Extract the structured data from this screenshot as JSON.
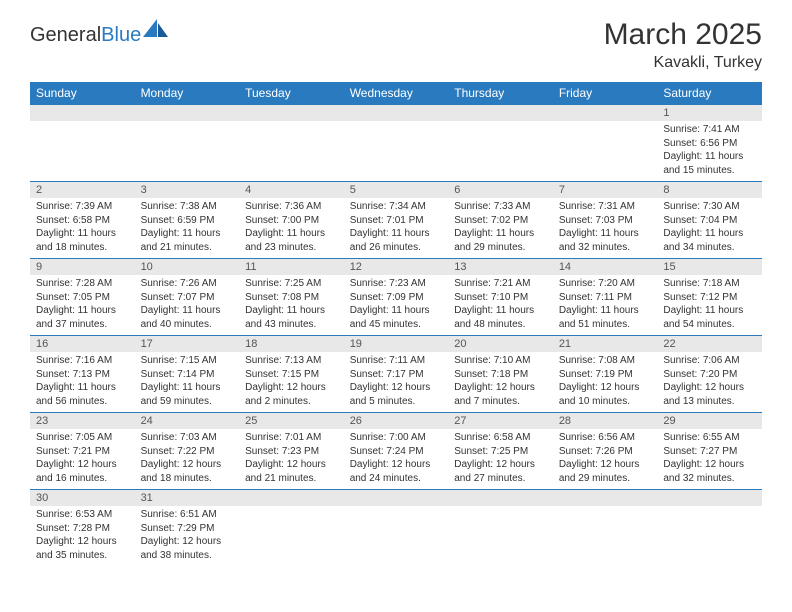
{
  "header": {
    "logo_general": "General",
    "logo_blue": "Blue",
    "month_title": "March 2025",
    "location": "Kavakli, Turkey"
  },
  "colors": {
    "header_bg": "#2a7abf",
    "header_text": "#ffffff",
    "daynum_bg": "#e8e8e8",
    "border": "#2a7abf",
    "text": "#333333",
    "logo_blue": "#2a7abf"
  },
  "weekdays": [
    "Sunday",
    "Monday",
    "Tuesday",
    "Wednesday",
    "Thursday",
    "Friday",
    "Saturday"
  ],
  "weeks": [
    [
      null,
      null,
      null,
      null,
      null,
      null,
      {
        "day": "1",
        "sunrise": "Sunrise: 7:41 AM",
        "sunset": "Sunset: 6:56 PM",
        "daylight": "Daylight: 11 hours and 15 minutes."
      }
    ],
    [
      {
        "day": "2",
        "sunrise": "Sunrise: 7:39 AM",
        "sunset": "Sunset: 6:58 PM",
        "daylight": "Daylight: 11 hours and 18 minutes."
      },
      {
        "day": "3",
        "sunrise": "Sunrise: 7:38 AM",
        "sunset": "Sunset: 6:59 PM",
        "daylight": "Daylight: 11 hours and 21 minutes."
      },
      {
        "day": "4",
        "sunrise": "Sunrise: 7:36 AM",
        "sunset": "Sunset: 7:00 PM",
        "daylight": "Daylight: 11 hours and 23 minutes."
      },
      {
        "day": "5",
        "sunrise": "Sunrise: 7:34 AM",
        "sunset": "Sunset: 7:01 PM",
        "daylight": "Daylight: 11 hours and 26 minutes."
      },
      {
        "day": "6",
        "sunrise": "Sunrise: 7:33 AM",
        "sunset": "Sunset: 7:02 PM",
        "daylight": "Daylight: 11 hours and 29 minutes."
      },
      {
        "day": "7",
        "sunrise": "Sunrise: 7:31 AM",
        "sunset": "Sunset: 7:03 PM",
        "daylight": "Daylight: 11 hours and 32 minutes."
      },
      {
        "day": "8",
        "sunrise": "Sunrise: 7:30 AM",
        "sunset": "Sunset: 7:04 PM",
        "daylight": "Daylight: 11 hours and 34 minutes."
      }
    ],
    [
      {
        "day": "9",
        "sunrise": "Sunrise: 7:28 AM",
        "sunset": "Sunset: 7:05 PM",
        "daylight": "Daylight: 11 hours and 37 minutes."
      },
      {
        "day": "10",
        "sunrise": "Sunrise: 7:26 AM",
        "sunset": "Sunset: 7:07 PM",
        "daylight": "Daylight: 11 hours and 40 minutes."
      },
      {
        "day": "11",
        "sunrise": "Sunrise: 7:25 AM",
        "sunset": "Sunset: 7:08 PM",
        "daylight": "Daylight: 11 hours and 43 minutes."
      },
      {
        "day": "12",
        "sunrise": "Sunrise: 7:23 AM",
        "sunset": "Sunset: 7:09 PM",
        "daylight": "Daylight: 11 hours and 45 minutes."
      },
      {
        "day": "13",
        "sunrise": "Sunrise: 7:21 AM",
        "sunset": "Sunset: 7:10 PM",
        "daylight": "Daylight: 11 hours and 48 minutes."
      },
      {
        "day": "14",
        "sunrise": "Sunrise: 7:20 AM",
        "sunset": "Sunset: 7:11 PM",
        "daylight": "Daylight: 11 hours and 51 minutes."
      },
      {
        "day": "15",
        "sunrise": "Sunrise: 7:18 AM",
        "sunset": "Sunset: 7:12 PM",
        "daylight": "Daylight: 11 hours and 54 minutes."
      }
    ],
    [
      {
        "day": "16",
        "sunrise": "Sunrise: 7:16 AM",
        "sunset": "Sunset: 7:13 PM",
        "daylight": "Daylight: 11 hours and 56 minutes."
      },
      {
        "day": "17",
        "sunrise": "Sunrise: 7:15 AM",
        "sunset": "Sunset: 7:14 PM",
        "daylight": "Daylight: 11 hours and 59 minutes."
      },
      {
        "day": "18",
        "sunrise": "Sunrise: 7:13 AM",
        "sunset": "Sunset: 7:15 PM",
        "daylight": "Daylight: 12 hours and 2 minutes."
      },
      {
        "day": "19",
        "sunrise": "Sunrise: 7:11 AM",
        "sunset": "Sunset: 7:17 PM",
        "daylight": "Daylight: 12 hours and 5 minutes."
      },
      {
        "day": "20",
        "sunrise": "Sunrise: 7:10 AM",
        "sunset": "Sunset: 7:18 PM",
        "daylight": "Daylight: 12 hours and 7 minutes."
      },
      {
        "day": "21",
        "sunrise": "Sunrise: 7:08 AM",
        "sunset": "Sunset: 7:19 PM",
        "daylight": "Daylight: 12 hours and 10 minutes."
      },
      {
        "day": "22",
        "sunrise": "Sunrise: 7:06 AM",
        "sunset": "Sunset: 7:20 PM",
        "daylight": "Daylight: 12 hours and 13 minutes."
      }
    ],
    [
      {
        "day": "23",
        "sunrise": "Sunrise: 7:05 AM",
        "sunset": "Sunset: 7:21 PM",
        "daylight": "Daylight: 12 hours and 16 minutes."
      },
      {
        "day": "24",
        "sunrise": "Sunrise: 7:03 AM",
        "sunset": "Sunset: 7:22 PM",
        "daylight": "Daylight: 12 hours and 18 minutes."
      },
      {
        "day": "25",
        "sunrise": "Sunrise: 7:01 AM",
        "sunset": "Sunset: 7:23 PM",
        "daylight": "Daylight: 12 hours and 21 minutes."
      },
      {
        "day": "26",
        "sunrise": "Sunrise: 7:00 AM",
        "sunset": "Sunset: 7:24 PM",
        "daylight": "Daylight: 12 hours and 24 minutes."
      },
      {
        "day": "27",
        "sunrise": "Sunrise: 6:58 AM",
        "sunset": "Sunset: 7:25 PM",
        "daylight": "Daylight: 12 hours and 27 minutes."
      },
      {
        "day": "28",
        "sunrise": "Sunrise: 6:56 AM",
        "sunset": "Sunset: 7:26 PM",
        "daylight": "Daylight: 12 hours and 29 minutes."
      },
      {
        "day": "29",
        "sunrise": "Sunrise: 6:55 AM",
        "sunset": "Sunset: 7:27 PM",
        "daylight": "Daylight: 12 hours and 32 minutes."
      }
    ],
    [
      {
        "day": "30",
        "sunrise": "Sunrise: 6:53 AM",
        "sunset": "Sunset: 7:28 PM",
        "daylight": "Daylight: 12 hours and 35 minutes."
      },
      {
        "day": "31",
        "sunrise": "Sunrise: 6:51 AM",
        "sunset": "Sunset: 7:29 PM",
        "daylight": "Daylight: 12 hours and 38 minutes."
      },
      null,
      null,
      null,
      null,
      null
    ]
  ]
}
